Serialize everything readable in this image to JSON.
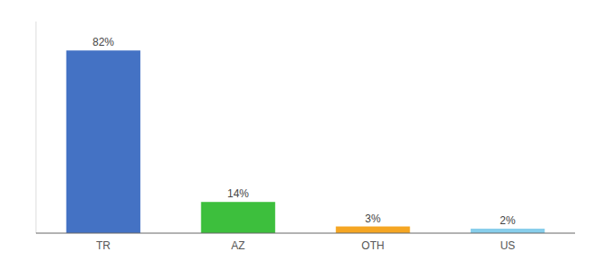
{
  "chart_data": {
    "type": "bar",
    "categories": [
      "TR",
      "AZ",
      "OTH",
      "US"
    ],
    "values": [
      82,
      14,
      3,
      2
    ],
    "value_labels": [
      "82%",
      "14%",
      "3%",
      "2%"
    ],
    "colors": [
      "#4472c4",
      "#3dbf3d",
      "#f5a623",
      "#87ceeb"
    ],
    "ylim": [
      0,
      95
    ],
    "data_labels": true,
    "tick_labels": "x"
  }
}
